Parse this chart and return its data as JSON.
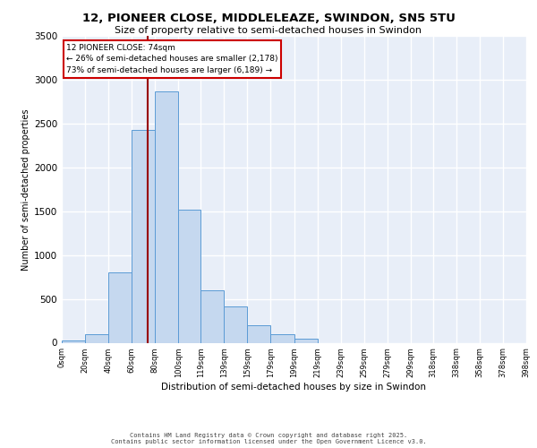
{
  "title_line1": "12, PIONEER CLOSE, MIDDLELEAZE, SWINDON, SN5 5TU",
  "title_line2": "Size of property relative to semi-detached houses in Swindon",
  "xlabel": "Distribution of semi-detached houses by size in Swindon",
  "ylabel": "Number of semi-detached properties",
  "annotation_title": "12 PIONEER CLOSE: 74sqm",
  "annotation_left": "← 26% of semi-detached houses are smaller (2,178)",
  "annotation_right": "73% of semi-detached houses are larger (6,189) →",
  "footer_line1": "Contains HM Land Registry data © Crown copyright and database right 2025.",
  "footer_line2": "Contains public sector information licensed under the Open Government Licence v3.0.",
  "property_size": 74,
  "bin_edges": [
    0,
    20,
    40,
    60,
    80,
    100,
    119,
    139,
    159,
    179,
    199,
    219,
    239,
    259,
    279,
    299,
    318,
    338,
    358,
    378,
    398
  ],
  "bin_labels": [
    "0sqm",
    "20sqm",
    "40sqm",
    "60sqm",
    "80sqm",
    "100sqm",
    "119sqm",
    "139sqm",
    "159sqm",
    "179sqm",
    "199sqm",
    "219sqm",
    "239sqm",
    "259sqm",
    "279sqm",
    "299sqm",
    "318sqm",
    "338sqm",
    "358sqm",
    "378sqm",
    "398sqm"
  ],
  "bar_heights": [
    25,
    100,
    800,
    2430,
    2870,
    1520,
    600,
    410,
    200,
    100,
    50,
    0,
    0,
    0,
    0,
    0,
    0,
    0,
    0,
    0
  ],
  "bar_color": "#c5d8ef",
  "bar_edge_color": "#5b9bd5",
  "background_color": "#e8eef8",
  "grid_color": "#ffffff",
  "red_line_color": "#990000",
  "annotation_box_color": "#ffffff",
  "annotation_box_edge": "#cc0000",
  "ylim": [
    0,
    3500
  ],
  "yticks": [
    0,
    500,
    1000,
    1500,
    2000,
    2500,
    3000,
    3500
  ]
}
